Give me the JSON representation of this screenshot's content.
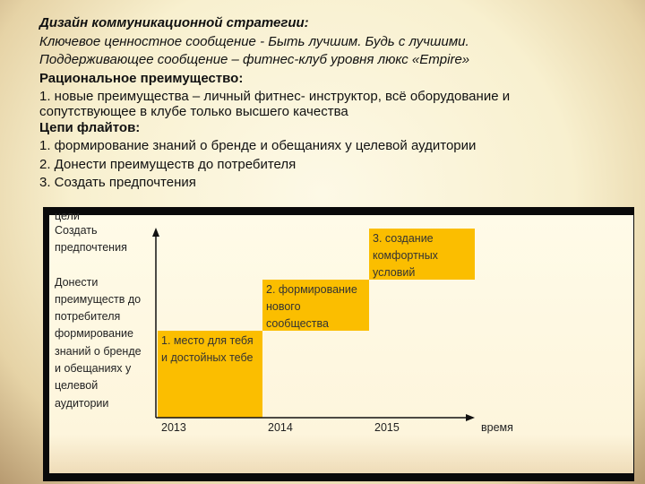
{
  "text": {
    "l1": "Дизайн коммуникационной стратегии:",
    "l2": "Ключевое ценностное сообщение - Быть лучшим. Будь с лучшими.",
    "l3": "Поддерживающее сообщение – фитнес-клуб уровня люкс «Empire»",
    "l4": "Рациональное преимущество:",
    "l5": "1. новые преимущества – личный фитнес- инструктор, всё оборудование и",
    "l6": "сопутствующее в клубе только высшего качества",
    "l7": "Цепи флайтов:",
    "l8": "1. формирование знаний о бренде и обещаниях у целевой аудитории",
    "l9": "2. Донести преимуществ до потребителя",
    "l10": "3. Создать предпочтения"
  },
  "diagram": {
    "y_axis_title": "цели",
    "goals": [
      "Создать",
      "предпочтения",
      "",
      "Донести",
      "преимуществ до",
      "потребителя",
      "формирование",
      "знаний о бренде",
      "и обещаниях у",
      "целевой",
      "аудитории"
    ],
    "steps": [
      {
        "l1": "1. место для тебя",
        "l2": "и достойных тебе",
        "l3": ""
      },
      {
        "l1": "2. формирование",
        "l2": "нового",
        "l3": "сообщества"
      },
      {
        "l1": "3. создание",
        "l2": "комфортных",
        "l3": "условий"
      }
    ],
    "years": [
      "2013",
      "2014",
      "2015"
    ],
    "x_axis_title": "время",
    "box_color": "#fbbe00"
  }
}
